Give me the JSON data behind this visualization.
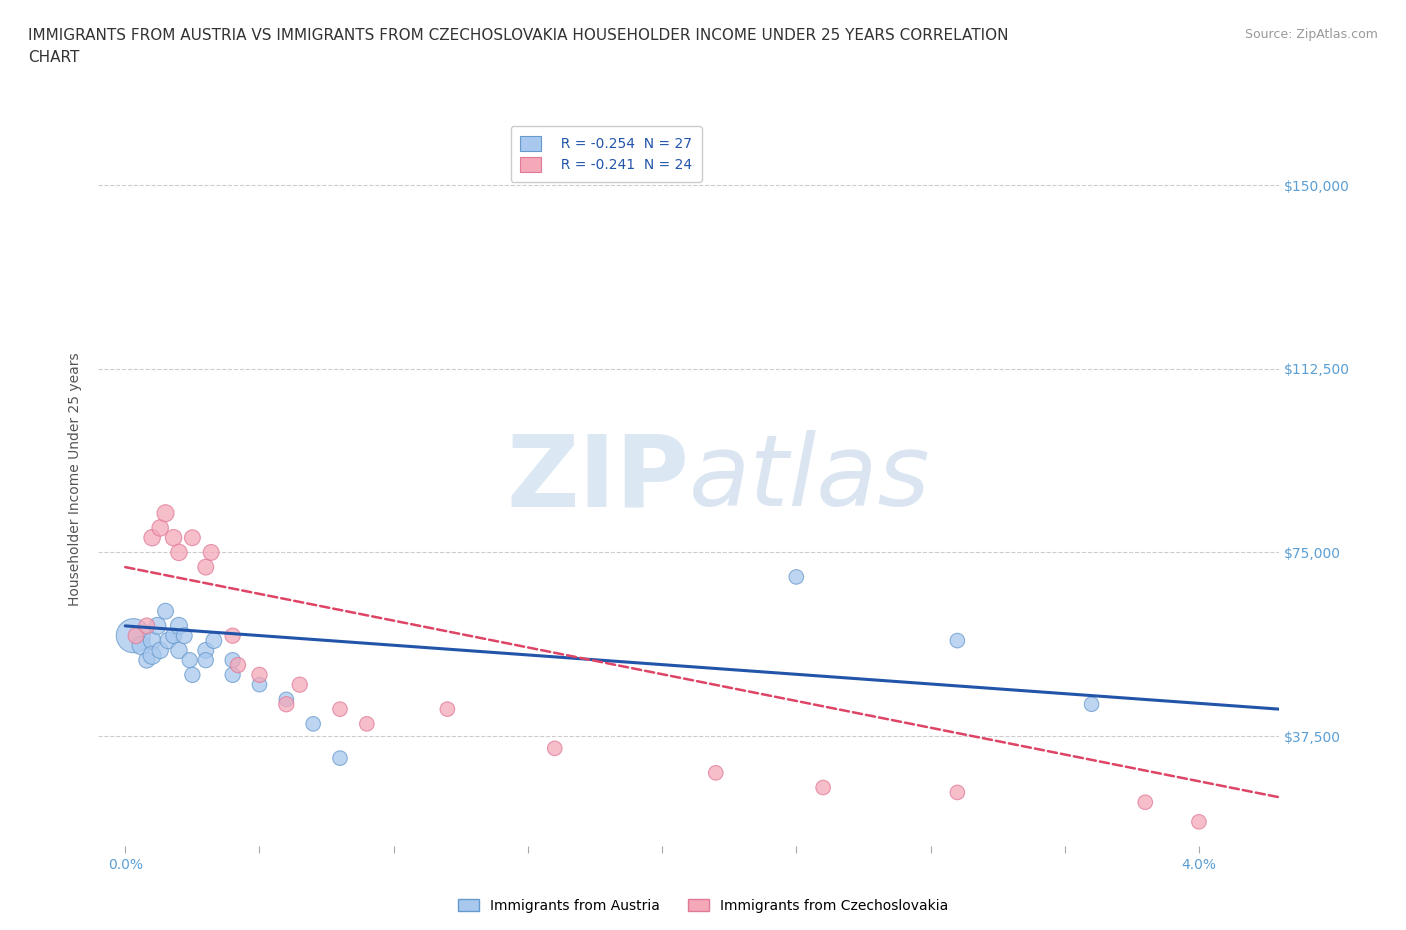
{
  "title": "IMMIGRANTS FROM AUSTRIA VS IMMIGRANTS FROM CZECHOSLOVAKIA HOUSEHOLDER INCOME UNDER 25 YEARS CORRELATION\nCHART",
  "source": "Source: ZipAtlas.com",
  "ylabel": "Householder Income Under 25 years",
  "xlabel_ticks": [
    "0.0%",
    "4.0%"
  ],
  "xlabel_vals": [
    0.0,
    0.04
  ],
  "ytick_labels": [
    "$37,500",
    "$75,000",
    "$112,500",
    "$150,000"
  ],
  "ytick_vals": [
    37500,
    75000,
    112500,
    150000
  ],
  "ylim": [
    15000,
    165000
  ],
  "xlim": [
    -0.001,
    0.043
  ],
  "austria_color": "#A8C8EE",
  "austria_edge": "#6699CC",
  "czech_color": "#F4A8B8",
  "czech_edge": "#E07898",
  "trend_austria_color": "#2255AA",
  "trend_czech_color": "#DD4466",
  "legend_austria_r": "R = -0.254",
  "legend_austria_n": "N = 27",
  "legend_czech_r": "R = -0.241",
  "legend_czech_n": "N = 24",
  "watermark_zip": "ZIP",
  "watermark_atlas": "atlas",
  "austria_x": [
    0.0003,
    0.0006,
    0.0008,
    0.001,
    0.001,
    0.0012,
    0.0013,
    0.0015,
    0.0016,
    0.0018,
    0.002,
    0.002,
    0.0022,
    0.0024,
    0.0025,
    0.003,
    0.003,
    0.0033,
    0.004,
    0.004,
    0.005,
    0.006,
    0.007,
    0.008,
    0.025,
    0.031,
    0.036
  ],
  "austria_y": [
    58000,
    56000,
    53000,
    57000,
    54000,
    60000,
    55000,
    63000,
    57000,
    58000,
    60000,
    55000,
    58000,
    53000,
    50000,
    55000,
    53000,
    57000,
    53000,
    50000,
    48000,
    45000,
    40000,
    33000,
    70000,
    57000,
    44000
  ],
  "austria_size": [
    600,
    180,
    130,
    160,
    170,
    150,
    140,
    130,
    140,
    130,
    150,
    140,
    130,
    120,
    120,
    130,
    120,
    130,
    120,
    120,
    110,
    110,
    110,
    110,
    110,
    110,
    110
  ],
  "czech_x": [
    0.0004,
    0.0008,
    0.001,
    0.0013,
    0.0015,
    0.0018,
    0.002,
    0.0025,
    0.003,
    0.0032,
    0.004,
    0.0042,
    0.005,
    0.006,
    0.0065,
    0.008,
    0.009,
    0.012,
    0.016,
    0.022,
    0.026,
    0.031,
    0.038,
    0.04
  ],
  "czech_y": [
    58000,
    60000,
    78000,
    80000,
    83000,
    78000,
    75000,
    78000,
    72000,
    75000,
    58000,
    52000,
    50000,
    44000,
    48000,
    43000,
    40000,
    43000,
    35000,
    30000,
    27000,
    26000,
    24000,
    20000
  ],
  "czech_size": [
    130,
    130,
    140,
    140,
    150,
    140,
    140,
    130,
    130,
    130,
    120,
    120,
    120,
    120,
    120,
    110,
    110,
    110,
    110,
    110,
    110,
    110,
    110,
    110
  ],
  "grid_color": "#CCCCCC",
  "bg_color": "#FFFFFF",
  "austria_trend_x0": 0.0,
  "austria_trend_y0": 60000,
  "austria_trend_x1": 0.043,
  "austria_trend_y1": 43000,
  "czech_trend_x0": 0.0,
  "czech_trend_y0": 72000,
  "czech_trend_x1": 0.043,
  "czech_trend_y1": 25000
}
